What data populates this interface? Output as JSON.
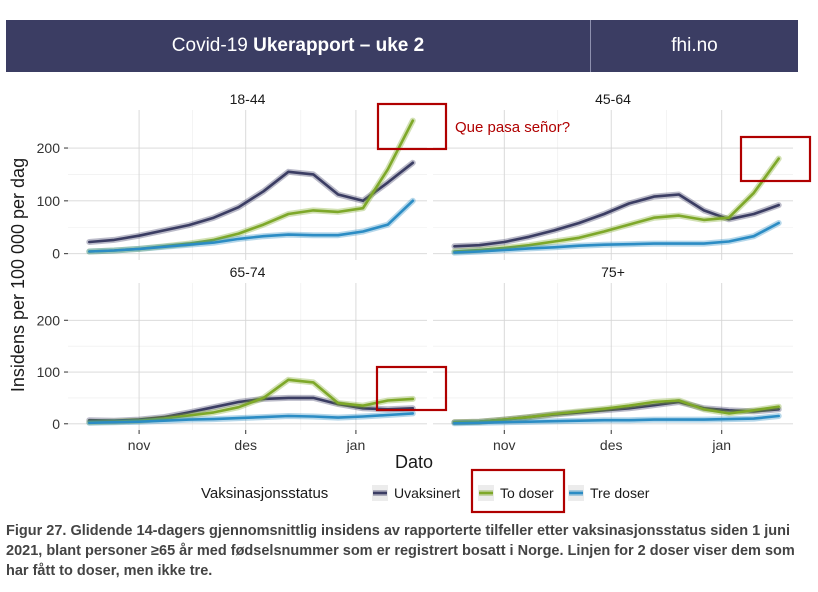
{
  "banner": {
    "title_prefix": "Covid-19 ",
    "title_bold": "Ukerapport – uke 2",
    "site": "fhi.no"
  },
  "annotation": {
    "text": "Que pasa señor?",
    "color": "#b00000"
  },
  "caption": "Figur 27. Glidende 14-dagers gjennomsnittlig insidens av rapporterte tilfeller etter vaksinasjonsstatus siden 1 juni 2021, blant personer ≥65 år med fødselsnummer som er registrert bosatt i Norge. Linjen for 2 doser viser dem som har fått to doser, men ikke tre.",
  "chart_data": {
    "type": "line",
    "xlabel": "Dato",
    "ylabel": "Insidens per 100 000 per dag",
    "x_ticks": [
      "nov",
      "des",
      "jan"
    ],
    "y_ticks": [
      0,
      100,
      200
    ],
    "ylim": [
      -12,
      272
    ],
    "grid": true,
    "legend": {
      "title": "Vaksinasjonsstatus",
      "position": "bottom",
      "entries": [
        "Uvaksinert",
        "To doser",
        "Tre doser"
      ]
    },
    "series_colors": {
      "Uvaksinert": "#3b3d63",
      "To doser": "#7ea829",
      "Tre doser": "#2b8cc4"
    },
    "x": [
      "2021-10-18",
      "2021-10-25",
      "2021-11-01",
      "2021-11-08",
      "2021-11-15",
      "2021-11-22",
      "2021-11-29",
      "2021-12-06",
      "2021-12-13",
      "2021-12-20",
      "2021-12-27",
      "2022-01-03",
      "2022-01-10",
      "2022-01-17"
    ],
    "panels": [
      {
        "title": "18-44",
        "series": [
          {
            "name": "Uvaksinert",
            "values": [
              22,
              26,
              34,
              44,
              54,
              68,
              88,
              118,
              155,
              150,
              112,
              100,
              135,
              172
            ]
          },
          {
            "name": "To doser",
            "values": [
              4,
              6,
              9,
              14,
              19,
              26,
              38,
              55,
              75,
              82,
              79,
              86,
              160,
              252
            ]
          },
          {
            "name": "Tre doser",
            "values": [
              4,
              6,
              9,
              13,
              17,
              21,
              28,
              33,
              36,
              35,
              35,
              42,
              55,
              100
            ]
          }
        ]
      },
      {
        "title": "45-64",
        "series": [
          {
            "name": "Uvaksinert",
            "values": [
              14,
              16,
              22,
              32,
              44,
              58,
              75,
              95,
              108,
              112,
              82,
              65,
              75,
              92
            ]
          },
          {
            "name": "To doser",
            "values": [
              4,
              7,
              11,
              16,
              23,
              30,
              42,
              55,
              68,
              72,
              64,
              68,
              115,
              180
            ]
          },
          {
            "name": "Tre doser",
            "values": [
              2,
              4,
              7,
              10,
              12,
              15,
              17,
              18,
              19,
              19,
              19,
              23,
              33,
              58
            ]
          }
        ]
      },
      {
        "title": "65-74",
        "series": [
          {
            "name": "Uvaksinert",
            "values": [
              7,
              6,
              8,
              13,
              22,
              32,
              42,
              48,
              50,
              50,
              38,
              30,
              28,
              30
            ]
          },
          {
            "name": "To doser",
            "values": [
              3,
              4,
              6,
              10,
              16,
              22,
              32,
              50,
              85,
              80,
              40,
              35,
              45,
              48
            ]
          },
          {
            "name": "Tre doser",
            "values": [
              2,
              3,
              4,
              6,
              8,
              9,
              11,
              13,
              15,
              14,
              12,
              14,
              17,
              20
            ]
          }
        ]
      },
      {
        "title": "75+",
        "series": [
          {
            "name": "Uvaksinert",
            "values": [
              3,
              4,
              8,
              13,
              18,
              22,
              26,
              30,
              36,
              42,
              30,
              26,
              24,
              28
            ]
          },
          {
            "name": "To doser",
            "values": [
              3,
              4,
              8,
              13,
              19,
              24,
              29,
              35,
              42,
              45,
              28,
              20,
              26,
              33
            ]
          },
          {
            "name": "Tre doser",
            "values": [
              1,
              2,
              3,
              4,
              5,
              6,
              7,
              7,
              8,
              8,
              8,
              9,
              10,
              15
            ]
          }
        ]
      }
    ]
  }
}
